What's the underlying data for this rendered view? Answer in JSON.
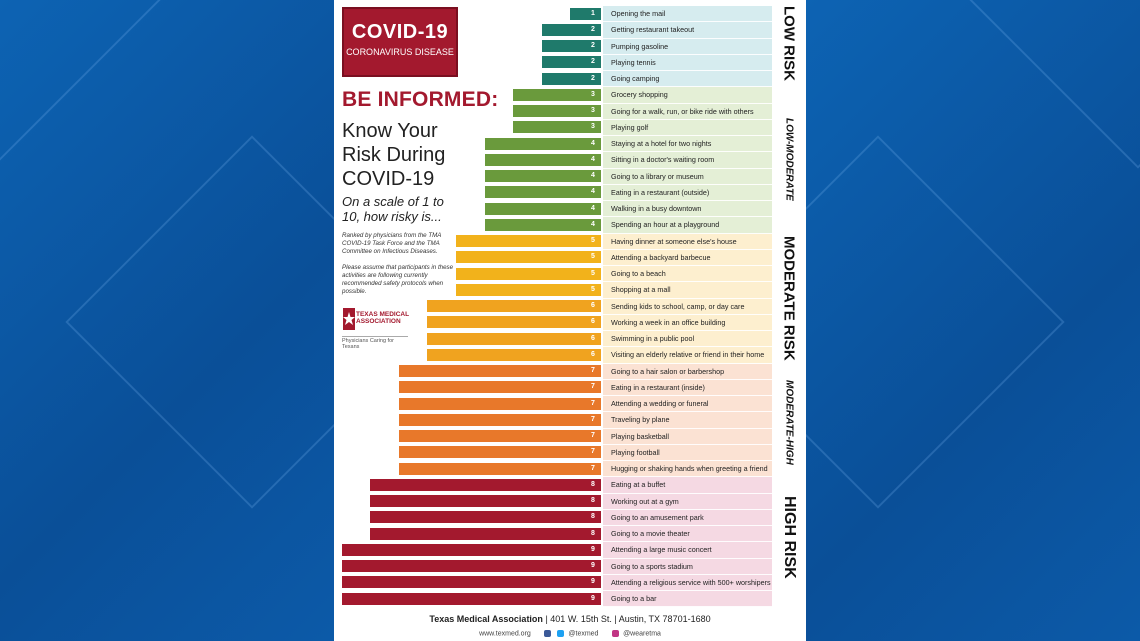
{
  "header": {
    "logo_title": "COVID-19",
    "logo_subtitle": "CORONAVIRUS DISEASE",
    "be_informed": "BE INFORMED:",
    "know_line1": "Know Your",
    "know_line2": "Risk During",
    "know_line3": "COVID-19",
    "scale_question": "On a scale of 1 to 10, how risky is...",
    "ranked_note": "Ranked by physicians from the TMA COVID-19 Task Force and the TMA Committee on Infectious Diseases.",
    "assume_note": "Please assume that participants in these activities are following currently recommended safety protocols when possible.",
    "tma_name": "TEXAS MEDICAL ASSOCIATION",
    "tma_tagline": "Physicians Caring for Texans"
  },
  "risk_levels": [
    "LOW RISK",
    "LOW-MODERATE",
    "MODERATE RISK",
    "MODERATE-HIGH",
    "HIGH RISK"
  ],
  "footer": {
    "org": "Texas Medical Association",
    "address1": "401 W. 15th St.",
    "address2": "Austin, TX 78701-1680",
    "website": "www.texmed.org",
    "handle1": "@texmed",
    "handle2": "@wearetma"
  },
  "colors": {
    "low": "#1f7a6b",
    "low_moderate": "#6a9a3c",
    "moderate": "#f2b21b",
    "moderate_orange": "#f0a31f",
    "moderate_high": "#e8782a",
    "high": "#a3192e",
    "band_low": "#d6ecef",
    "band_low_moderate": "#e4efd6",
    "band_moderate": "#fdefcf",
    "band_moderate_high": "#fbe2d3",
    "band_high": "#f5d9e3"
  },
  "chart_data": {
    "type": "bar",
    "orientation": "horizontal",
    "title": "Know Your Risk During COVID-19",
    "xlim": [
      0,
      10
    ],
    "categories": [
      "Opening the mail",
      "Getting restaurant takeout",
      "Pumping gasoline",
      "Playing tennis",
      "Going camping",
      "Grocery shopping",
      "Going for a walk, run, or bike ride with others",
      "Playing golf",
      "Staying at a hotel for two nights",
      "Sitting in a doctor's waiting room",
      "Going to a library or museum",
      "Eating in a restaurant (outside)",
      "Walking in a busy downtown",
      "Spending an hour at a playground",
      "Having dinner at someone else's house",
      "Attending a backyard barbecue",
      "Going to a beach",
      "Shopping at a mall",
      "Sending kids to school, camp, or day care",
      "Working a week in an office building",
      "Swimming in a public pool",
      "Visiting an elderly relative or friend in their home",
      "Going to a hair salon or barbershop",
      "Eating in a restaurant (inside)",
      "Attending a wedding or funeral",
      "Traveling by plane",
      "Playing basketball",
      "Playing football",
      "Hugging or shaking hands when greeting a friend",
      "Eating at a buffet",
      "Working out at a gym",
      "Going to an amusement park",
      "Going to a movie theater",
      "Attending a large music concert",
      "Going to a sports stadium",
      "Attending a religious service with 500+ worshipers",
      "Going to a bar"
    ],
    "values": [
      1,
      2,
      2,
      2,
      2,
      3,
      3,
      3,
      4,
      4,
      4,
      4,
      4,
      4,
      5,
      5,
      5,
      5,
      6,
      6,
      6,
      6,
      7,
      7,
      7,
      7,
      7,
      7,
      7,
      8,
      8,
      8,
      8,
      9,
      9,
      9,
      9
    ]
  }
}
